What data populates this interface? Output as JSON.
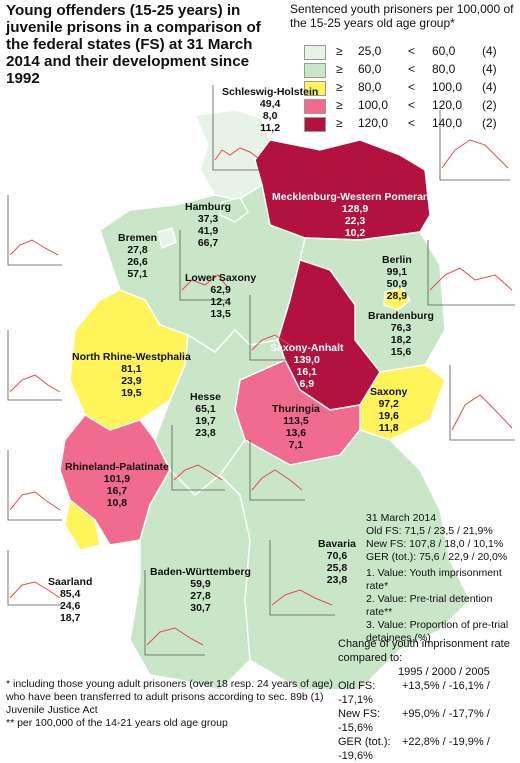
{
  "title": "Young offenders (15-25 years) in juvenile prisons in a comparison of the federal states (FS) at 31 March 2014 and their development since 1992",
  "legend": {
    "title": "Sentenced youth prisoners per 100,000 of the 15-25 years old age group*",
    "classes": [
      {
        "ge": "≥",
        "from": "25,0",
        "lt": "<",
        "to": "60,0",
        "count": "(4)",
        "color": "#e8f3e8"
      },
      {
        "ge": "≥",
        "from": "60,0",
        "lt": "<",
        "to": "80,0",
        "count": "(4)",
        "color": "#c9e6c9"
      },
      {
        "ge": "≥",
        "from": "80,0",
        "lt": "<",
        "to": "100,0",
        "count": "(4)",
        "color": "#fff45a"
      },
      {
        "ge": "≥",
        "from": "100,0",
        "lt": "<",
        "to": "120,0",
        "count": "(2)",
        "color": "#f06b8e"
      },
      {
        "ge": "≥",
        "from": "120,0",
        "lt": "<",
        "to": "140,0",
        "count": "(2)",
        "color": "#b3123f"
      }
    ]
  },
  "states": {
    "sh": {
      "name": "Schleswig-Holstein",
      "v1": "49,4",
      "v2": "8,0",
      "v3": "11,2"
    },
    "hh": {
      "name": "Hamburg",
      "v1": "37,3",
      "v2": "41,9",
      "v3": "66,7"
    },
    "mv": {
      "name": "Mecklenburg-Western Pomerania",
      "v1": "128,9",
      "v2": "22,3",
      "v3": "10,2"
    },
    "hb": {
      "name": "Bremen",
      "v1": "27,8",
      "v2": "26,6",
      "v3": "57,1"
    },
    "ni": {
      "name": "Lower Saxony",
      "v1": "62,9",
      "v2": "12,4",
      "v3": "13,5"
    },
    "be": {
      "name": "Berlin",
      "v1": "99,1",
      "v2": "50,9",
      "v3": "28,9"
    },
    "bb": {
      "name": "Brandenburg",
      "v1": "76,3",
      "v2": "18,2",
      "v3": "15,6"
    },
    "st": {
      "name": "Saxony-Anhalt",
      "v1": "139,0",
      "v2": "16,1",
      "v3": "6,9"
    },
    "nw": {
      "name": "North Rhine-Westphalia",
      "v1": "81,1",
      "v2": "23,9",
      "v3": "19,5"
    },
    "sn": {
      "name": "Saxony",
      "v1": "97,2",
      "v2": "19,6",
      "v3": "11,8"
    },
    "he": {
      "name": "Hesse",
      "v1": "65,1",
      "v2": "19,7",
      "v3": "23,8"
    },
    "th": {
      "name": "Thuringia",
      "v1": "113,5",
      "v2": "13,6",
      "v3": "7,1"
    },
    "rp": {
      "name": "Rhineland-Palatinate",
      "v1": "101,9",
      "v2": "16,7",
      "v3": "10,8"
    },
    "sl": {
      "name": "Saarland",
      "v1": "85,4",
      "v2": "24,6",
      "v3": "18,7"
    },
    "bw": {
      "name": "Baden-Württemberg",
      "v1": "59,9",
      "v2": "27,8",
      "v3": "30,7"
    },
    "by": {
      "name": "Bavaria",
      "v1": "70,6",
      "v2": "25,8",
      "v3": "23,8"
    }
  },
  "summary": {
    "date": "31 March 2014",
    "old": "Old FS:   71,5 / 23,5 / 21,9%",
    "new": "New FS:  107,8 / 18,0 / 10,1%",
    "ger": "GER (tot.): 75,6 / 22,9 / 20,0%",
    "n1": "1. Value: Youth imprisonment rate*",
    "n2": "2. Value: Pre-trial detention rate**",
    "n3": "3. Value: Proportion of pre-trial detainees (%)"
  },
  "change": {
    "title": "Change of youth imprisonment rate compared to:",
    "header": "1995  /  2000  /  2005",
    "rows": [
      {
        "label": "Old FS:",
        "values": "+13,5% / -16,1% / -17,1%"
      },
      {
        "label": "New FS:",
        "values": "+95,0% / -17,7% / -15,6%"
      },
      {
        "label": "GER (tot.):",
        "values": "+22,8% / -19,9% / -19,6%"
      }
    ]
  },
  "footnotes": {
    "f1": "* including those young adult prisoners (over 18 resp. 24 years of age) who have been transferred to adult prisons according to sec. 89b (1) Juvenile Justice Act",
    "f2": "** per 100,000 of the 14-21 years old age group"
  }
}
